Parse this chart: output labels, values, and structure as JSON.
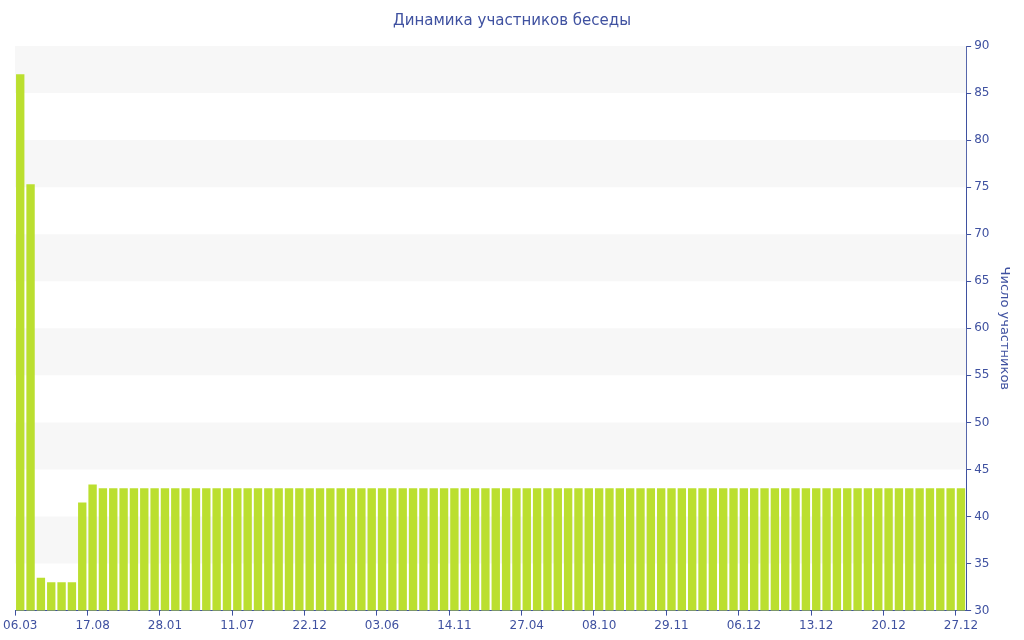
{
  "chart_data": {
    "type": "bar",
    "title": "Динамика участников беседы",
    "ylabel": "Число участников",
    "categories": [
      "06.03",
      null,
      null,
      null,
      null,
      null,
      null,
      "17.08",
      null,
      null,
      null,
      null,
      null,
      null,
      "28.01",
      null,
      null,
      null,
      null,
      null,
      null,
      "11.07",
      null,
      null,
      null,
      null,
      null,
      null,
      "22.12",
      null,
      null,
      null,
      null,
      null,
      null,
      "03.06",
      null,
      null,
      null,
      null,
      null,
      null,
      "14.11",
      null,
      null,
      null,
      null,
      null,
      null,
      "27.04",
      null,
      null,
      null,
      null,
      null,
      null,
      "08.10",
      null,
      null,
      null,
      null,
      null,
      null,
      "29.11",
      null,
      null,
      null,
      null,
      null,
      null,
      "06.12",
      null,
      null,
      null,
      null,
      null,
      null,
      "13.12",
      null,
      null,
      null,
      null,
      null,
      null,
      "20.12",
      null,
      null,
      null,
      null,
      null,
      null,
      "27.12"
    ],
    "values": [
      87,
      75.3,
      33.5,
      33,
      33,
      33,
      41.5,
      43.4,
      43,
      43,
      43,
      43,
      43,
      43,
      43,
      43,
      43,
      43,
      43,
      43,
      43,
      43,
      43,
      43,
      43,
      43,
      43,
      43,
      43,
      43,
      43,
      43,
      43,
      43,
      43,
      43,
      43,
      43,
      43,
      43,
      43,
      43,
      43,
      43,
      43,
      43,
      43,
      43,
      43,
      43,
      43,
      43,
      43,
      43,
      43,
      43,
      43,
      43,
      43,
      43,
      43,
      43,
      43,
      43,
      43,
      43,
      43,
      43,
      43,
      43,
      43,
      43,
      43,
      43,
      43,
      43,
      43,
      43,
      43,
      43,
      43,
      43,
      43,
      43,
      43,
      43,
      43,
      43,
      43,
      43,
      43,
      43
    ],
    "color": "#bbdf2f",
    "ylim": [
      30,
      90
    ],
    "yticks": [
      30,
      35,
      40,
      45,
      50,
      55,
      60,
      65,
      70,
      75,
      80,
      85,
      90
    ],
    "bands": [
      {
        "axis": "y",
        "from": 85,
        "to": 90,
        "color": "#f7f7f7"
      },
      {
        "axis": "y",
        "from": 75,
        "to": 80,
        "color": "#f7f7f7"
      },
      {
        "axis": "y",
        "from": 65,
        "to": 70,
        "color": "#f7f7f7"
      },
      {
        "axis": "y",
        "from": 55,
        "to": 60,
        "color": "#f7f7f7"
      },
      {
        "axis": "y",
        "from": 45,
        "to": 50,
        "color": "#f7f7f7"
      },
      {
        "axis": "y",
        "from": 35,
        "to": 40,
        "color": "#f7f7f7"
      }
    ],
    "legend": false
  }
}
